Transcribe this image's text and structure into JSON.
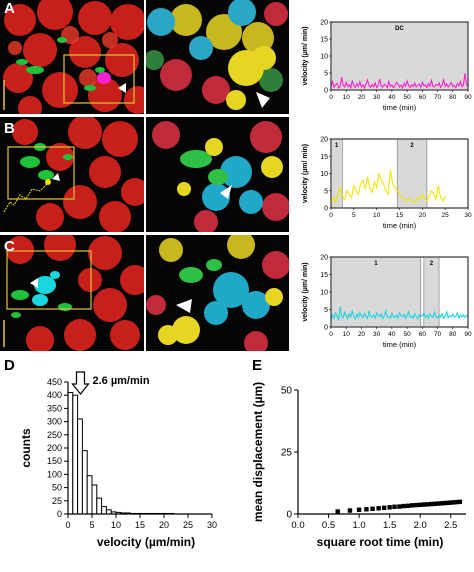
{
  "panels": {
    "A": {
      "letter": "A"
    },
    "B": {
      "letter": "B"
    },
    "C": {
      "letter": "C"
    },
    "D": {
      "letter": "D"
    },
    "E": {
      "letter": "E"
    }
  },
  "colors": {
    "magenta": "#ff1fd2",
    "yellow": "#f2e400",
    "cyan": "#19d6df",
    "red_cells": "#d8231f",
    "green_cells": "#1fc23b",
    "box_outline": "#e2c23a",
    "shade": "#d9d9d9"
  },
  "chart_data": [
    {
      "id": "A-velocity",
      "type": "line",
      "xlabel": "time (min)",
      "ylabel": "velocity (µm/ min)",
      "xlim": [
        0,
        90
      ],
      "ylim": [
        0,
        20
      ],
      "xticks": [
        "0",
        "10",
        "20",
        "30",
        "40",
        "50",
        "60",
        "70",
        "80",
        "90"
      ],
      "yticks": [
        "0",
        "5",
        "10",
        "15",
        "20"
      ],
      "shaded_regions": [
        {
          "from": 0,
          "to": 90,
          "label": "DC"
        }
      ],
      "series": [
        {
          "color": "#ff1fd2",
          "x": [
            0,
            1,
            2,
            3,
            4,
            5,
            6,
            7,
            8,
            9,
            10,
            11,
            12,
            13,
            14,
            15,
            16,
            17,
            18,
            19,
            20,
            21,
            22,
            23,
            24,
            25,
            26,
            27,
            28,
            29,
            30,
            31,
            32,
            33,
            34,
            35,
            36,
            37,
            38,
            39,
            40,
            41,
            42,
            43,
            44,
            45,
            46,
            47,
            48,
            49,
            50,
            51,
            52,
            53,
            54,
            55,
            56,
            57,
            58,
            59,
            60,
            61,
            62,
            63,
            64,
            65,
            66,
            67,
            68,
            69,
            70,
            71,
            72,
            73,
            74,
            75,
            76,
            77,
            78,
            79,
            80,
            81,
            82,
            83,
            84,
            85,
            86,
            87,
            88,
            89,
            90
          ],
          "values": [
            1.2,
            2.5,
            0.8,
            1.5,
            2.0,
            0.6,
            1.1,
            3.8,
            1.4,
            0.9,
            2.2,
            1.0,
            1.6,
            0.7,
            2.8,
            1.3,
            0.8,
            1.9,
            1.1,
            2.4,
            0.9,
            1.5,
            0.6,
            1.8,
            2.9,
            1.2,
            0.8,
            1.6,
            1.0,
            2.1,
            0.7,
            1.4,
            3.2,
            1.1,
            0.9,
            1.7,
            1.3,
            0.8,
            2.6,
            1.0,
            1.5,
            0.7,
            1.2,
            2.2,
            1.8,
            0.9,
            1.4,
            0.6,
            1.9,
            1.1,
            2.7,
            1.3,
            0.8,
            1.6,
            1.0,
            2.0,
            0.9,
            1.4,
            1.7,
            0.8,
            2.3,
            1.2,
            1.5,
            0.7,
            1.9,
            1.1,
            2.8,
            1.0,
            0.9,
            1.6,
            1.3,
            2.1,
            0.8,
            1.4,
            3.0,
            1.1,
            1.8,
            0.9,
            1.5,
            2.2,
            1.0,
            1.3,
            0.7,
            1.9,
            1.2,
            2.5,
            1.0,
            1.4,
            4.9,
            1.6,
            1.2
          ]
        }
      ]
    },
    {
      "id": "B-velocity",
      "type": "line",
      "xlabel": "time (min)",
      "ylabel": "velocity (µm/ min)",
      "xlim": [
        0,
        30
      ],
      "ylim": [
        0,
        20
      ],
      "xticks": [
        "0",
        "5",
        "10",
        "15",
        "20",
        "25",
        "30"
      ],
      "yticks": [
        "0",
        "5",
        "10",
        "15",
        "20"
      ],
      "shaded_regions": [
        {
          "from": 0,
          "to": 2.5,
          "label": "1"
        },
        {
          "from": 14.5,
          "to": 21,
          "label": "2"
        }
      ],
      "series": [
        {
          "color": "#f2e400",
          "x": [
            0,
            0.5,
            1,
            1.5,
            2,
            2.5,
            3,
            3.5,
            4,
            4.5,
            5,
            5.5,
            6,
            6.5,
            7,
            7.5,
            8,
            8.5,
            9,
            9.5,
            10,
            10.5,
            11,
            11.5,
            12,
            12.5,
            13,
            13.5,
            14,
            14.5,
            15,
            15.5,
            16,
            16.5,
            17,
            17.5,
            18,
            18.5,
            19,
            19.5,
            20,
            20.5,
            21,
            21.5,
            22,
            22.5,
            23,
            23.5,
            24,
            24.5,
            25
          ],
          "values": [
            2,
            3,
            1.5,
            4,
            6,
            3.5,
            2.5,
            5,
            4,
            3,
            6.5,
            5,
            4,
            7,
            8,
            5.5,
            9,
            6,
            4.5,
            7.5,
            6,
            10,
            8,
            7,
            5,
            4,
            11,
            7,
            6,
            5,
            4,
            3,
            2.5,
            2,
            3,
            2.5,
            1.5,
            2,
            3,
            2.5,
            4,
            3,
            2,
            3.5,
            5,
            4,
            2.5,
            6.5,
            3,
            2,
            3.5
          ]
        }
      ]
    },
    {
      "id": "C-velocity",
      "type": "line",
      "xlabel": "time (min)",
      "ylabel": "velocity (µm/ min)",
      "xlim": [
        0,
        90
      ],
      "ylim": [
        0,
        20
      ],
      "xticks": [
        "0",
        "10",
        "20",
        "30",
        "40",
        "50",
        "60",
        "70",
        "80",
        "90"
      ],
      "yticks": [
        "0",
        "5",
        "10",
        "15",
        "20"
      ],
      "shaded_regions": [
        {
          "from": 0,
          "to": 59,
          "label": "1"
        },
        {
          "from": 61,
          "to": 71,
          "label": "2"
        }
      ],
      "series": [
        {
          "color": "#19d6df",
          "x": [
            0,
            1,
            2,
            3,
            4,
            5,
            6,
            7,
            8,
            9,
            10,
            11,
            12,
            13,
            14,
            15,
            16,
            17,
            18,
            19,
            20,
            21,
            22,
            23,
            24,
            25,
            26,
            27,
            28,
            29,
            30,
            31,
            32,
            33,
            34,
            35,
            36,
            37,
            38,
            39,
            40,
            41,
            42,
            43,
            44,
            45,
            46,
            47,
            48,
            49,
            50,
            51,
            52,
            53,
            54,
            55,
            56,
            57,
            58,
            59,
            60,
            61,
            62,
            63,
            64,
            65,
            66,
            67,
            68,
            69,
            70,
            71,
            72,
            73,
            74,
            75,
            76,
            77,
            78,
            79,
            80,
            81,
            82,
            83,
            84,
            85,
            86,
            87,
            88,
            89,
            90
          ],
          "values": [
            2.0,
            3.5,
            2.5,
            4.0,
            3.0,
            2.2,
            5.8,
            3.1,
            2.6,
            4.2,
            3.3,
            2.4,
            3.8,
            2.9,
            4.5,
            3.0,
            2.3,
            3.6,
            2.8,
            4.1,
            3.2,
            2.7,
            3.9,
            3.0,
            2.5,
            4.4,
            3.1,
            2.8,
            3.5,
            2.6,
            4.0,
            3.3,
            2.9,
            3.7,
            2.4,
            3.2,
            4.6,
            2.8,
            3.1,
            2.5,
            3.9,
            3.0,
            2.7,
            3.4,
            2.6,
            4.1,
            3.2,
            2.9,
            3.6,
            2.5,
            3.3,
            4.3,
            2.8,
            3.1,
            2.6,
            3.8,
            3.0,
            2.4,
            3.5,
            2.9,
            3.2,
            4.0,
            2.7,
            3.4,
            2.5,
            3.7,
            3.1,
            2.8,
            4.2,
            3.0,
            2.6,
            3.3,
            2.9,
            3.8,
            2.5,
            3.1,
            4.4,
            2.7,
            3.2,
            2.9,
            3.6,
            2.8,
            3.0,
            4.1,
            2.6,
            3.4,
            2.9,
            3.5,
            2.7,
            3.3,
            3.0
          ]
        }
      ]
    },
    {
      "id": "D-histogram",
      "type": "bar",
      "xlabel": "velocity (µm/min)",
      "ylabel": "counts",
      "annotation": "2.6 µm/min",
      "annotation_x": 2.6,
      "xlim": [
        0,
        30
      ],
      "ylim": [
        0,
        450
      ],
      "xticks": [
        "0",
        "5",
        "10",
        "15",
        "20",
        "25",
        "30"
      ],
      "yticks": [
        "0",
        "25",
        "50",
        "100",
        "150",
        "200",
        "250",
        "300",
        "350",
        "400",
        "450"
      ],
      "bin_width": 1,
      "x": [
        0,
        1,
        2,
        3,
        4,
        5,
        6,
        7,
        8,
        9,
        10,
        11,
        12,
        13,
        14,
        15,
        16,
        17,
        18,
        19,
        20,
        21,
        22,
        23,
        24,
        25,
        26,
        27,
        28,
        29
      ],
      "values": [
        410,
        400,
        310,
        190,
        95,
        60,
        30,
        14,
        8,
        4,
        3,
        2,
        2,
        1,
        1,
        1,
        1,
        1,
        1,
        1,
        1,
        1,
        0,
        0,
        0,
        0,
        0,
        0,
        0,
        0
      ]
    },
    {
      "id": "E-displacement",
      "type": "scatter",
      "xlabel": "square root time (min)",
      "ylabel": "mean displacement (µm)",
      "xlim": [
        0,
        2.75
      ],
      "ylim": [
        0,
        50
      ],
      "xticks": [
        "0.0",
        "0.5",
        "1.0",
        "1.5",
        "2.0",
        "2.5"
      ],
      "yticks": [
        "0",
        "25",
        "50"
      ],
      "x": [
        0.65,
        0.85,
        1.0,
        1.12,
        1.22,
        1.32,
        1.41,
        1.5,
        1.58,
        1.66,
        1.73,
        1.8,
        1.87,
        1.94,
        2.0,
        2.06,
        2.12,
        2.18,
        2.24,
        2.29,
        2.35,
        2.4,
        2.45,
        2.5,
        2.55,
        2.6,
        2.65
      ],
      "values": [
        1.0,
        1.4,
        1.7,
        1.9,
        2.1,
        2.3,
        2.5,
        2.7,
        2.9,
        3.0,
        3.2,
        3.3,
        3.5,
        3.6,
        3.7,
        3.8,
        3.9,
        4.0,
        4.1,
        4.2,
        4.3,
        4.4,
        4.5,
        4.6,
        4.7,
        4.8,
        4.9
      ]
    }
  ]
}
